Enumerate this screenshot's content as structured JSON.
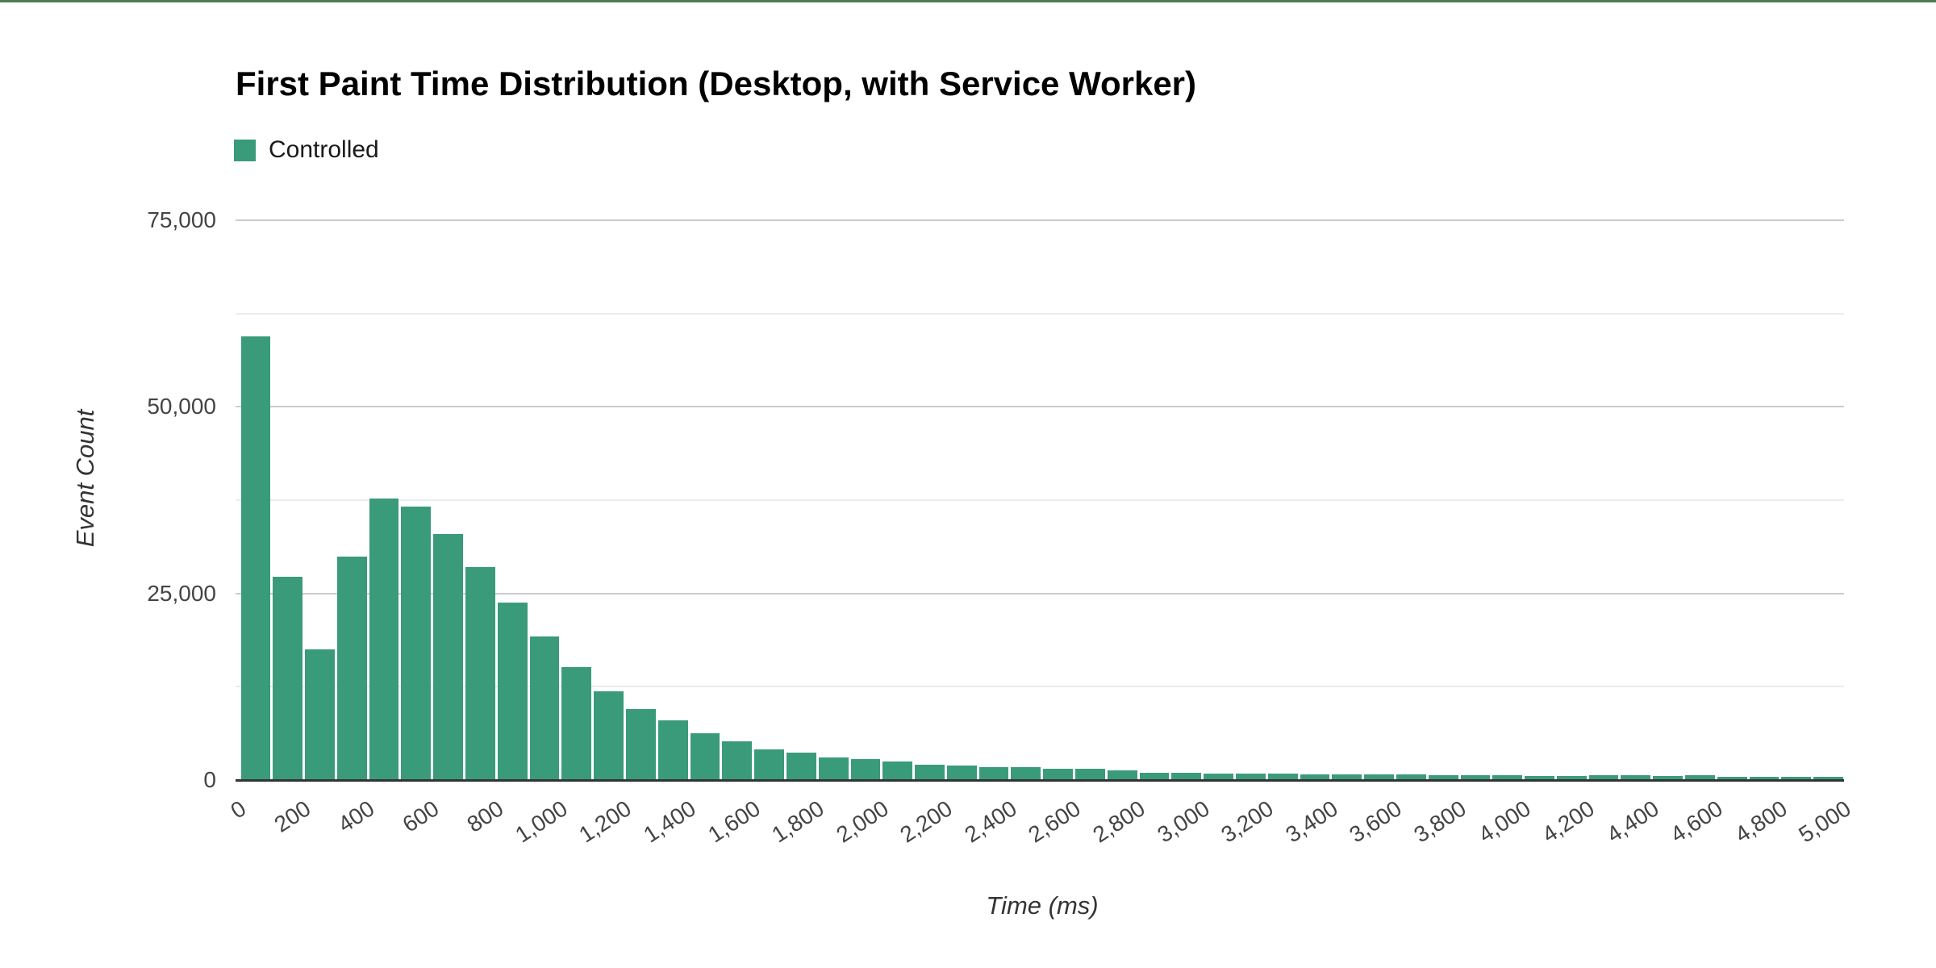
{
  "page": {
    "top_border_color": "#4d7a52",
    "background_color": "#ffffff"
  },
  "colors": {
    "bar": "#3a9b7a",
    "major_gridline": "#cccccc",
    "minor_gridline": "#ececec",
    "baseline": "#333333",
    "tick_text": "#444444"
  },
  "chart_data": {
    "type": "bar",
    "title": "First Paint Time Distribution (Desktop, with Service Worker)",
    "xlabel": "Time (ms)",
    "ylabel": "Event Count",
    "legend": [
      {
        "label": "Controlled",
        "color": "#3a9b7a"
      }
    ],
    "legend_position": "top-left",
    "grid": true,
    "bin_width_ms": 100,
    "x_range_ms": [
      0,
      5000
    ],
    "ylim": [
      0,
      80000
    ],
    "y_ticks": [
      {
        "value": 0,
        "label": "0"
      },
      {
        "value": 25000,
        "label": "25,000"
      },
      {
        "value": 50000,
        "label": "50,000"
      },
      {
        "value": 75000,
        "label": "75,000"
      }
    ],
    "y_minor_tick_values": [
      12500,
      37500,
      62500
    ],
    "x_tick_labels": [
      "0",
      "200",
      "400",
      "600",
      "800",
      "1,000",
      "1,200",
      "1,400",
      "1,600",
      "1,800",
      "2,000",
      "2,200",
      "2,400",
      "2,600",
      "2,800",
      "3,000",
      "3,200",
      "3,400",
      "3,600",
      "3,800",
      "4,000",
      "4,200",
      "4,400",
      "4,600",
      "4,800",
      "5,000"
    ],
    "series": [
      {
        "name": "Controlled",
        "bin_start_ms": [
          0,
          100,
          200,
          300,
          400,
          500,
          600,
          700,
          800,
          900,
          1000,
          1100,
          1200,
          1300,
          1400,
          1500,
          1600,
          1700,
          1800,
          1900,
          2000,
          2100,
          2200,
          2300,
          2400,
          2500,
          2600,
          2700,
          2800,
          2900,
          3000,
          3100,
          3200,
          3300,
          3400,
          3500,
          3600,
          3700,
          3800,
          3900,
          4000,
          4100,
          4200,
          4300,
          4400,
          4500,
          4600,
          4700,
          4800,
          4900
        ],
        "values": [
          59400,
          27200,
          17500,
          29900,
          37700,
          36600,
          33000,
          28500,
          23800,
          19200,
          15100,
          11900,
          9500,
          8000,
          6300,
          5200,
          4100,
          3700,
          3050,
          2850,
          2500,
          2100,
          1900,
          1700,
          1700,
          1500,
          1550,
          1300,
          1000,
          950,
          900,
          850,
          850,
          800,
          750,
          750,
          800,
          700,
          650,
          650,
          550,
          550,
          600,
          650,
          500,
          600,
          450,
          450,
          400,
          400
        ]
      }
    ]
  }
}
